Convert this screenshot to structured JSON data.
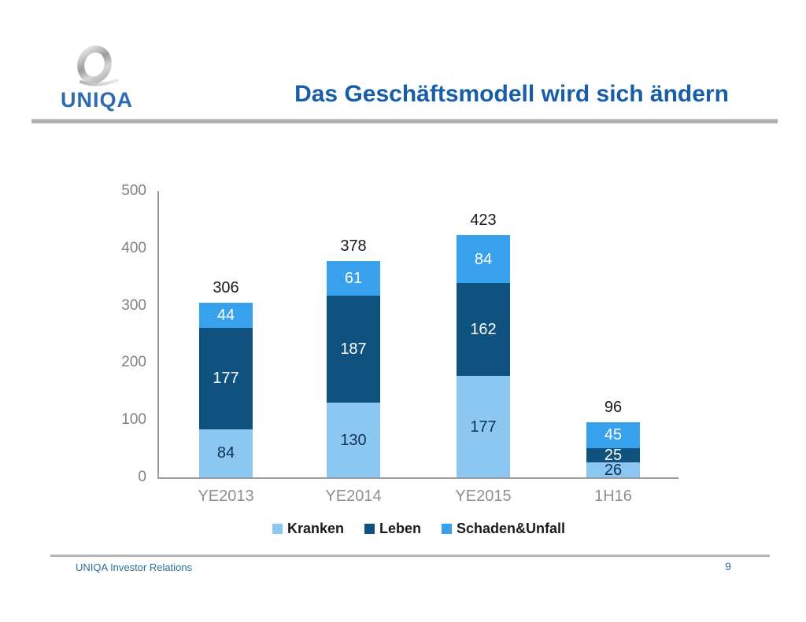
{
  "header": {
    "logo_text": "UNIQA",
    "title": "Das Geschäftsmodell wird sich ändern"
  },
  "footer": {
    "left_text": "UNIQA Investor Relations",
    "page_number": "9"
  },
  "colors": {
    "title": "#185DA7",
    "footer_text": "#2E6D99",
    "logo_text": "#2D6CB2",
    "axis_line": "#9B9B9B",
    "tick_label": "#808080",
    "category_label": "#8F8F8F",
    "total_label": "#1A1A1A",
    "kranken": "#8BC7F0",
    "leben": "#0F517F",
    "schaden_unfall": "#38A1ED"
  },
  "chart_data": {
    "type": "bar",
    "stacked": true,
    "categories": [
      "YE2013",
      "YE2014",
      "YE2015",
      "1H16"
    ],
    "series": [
      {
        "name": "Kranken",
        "color": "#8BC7F0",
        "label_color": "#0D3156",
        "values": [
          84,
          130,
          177,
          26
        ]
      },
      {
        "name": "Leben",
        "color": "#0F517F",
        "label_color": "#FFFFFF",
        "values": [
          177,
          187,
          162,
          25
        ]
      },
      {
        "name": "Schaden&Unfall",
        "color": "#38A1ED",
        "label_color": "#FFFFFF",
        "values": [
          44,
          61,
          84,
          45
        ]
      }
    ],
    "totals": [
      306,
      378,
      423,
      96
    ],
    "title": "",
    "xlabel": "",
    "ylabel": "",
    "ylim": [
      0,
      500
    ],
    "yticks": [
      0,
      100,
      200,
      300,
      400,
      500
    ],
    "legend_position": "bottom",
    "grid": false
  }
}
